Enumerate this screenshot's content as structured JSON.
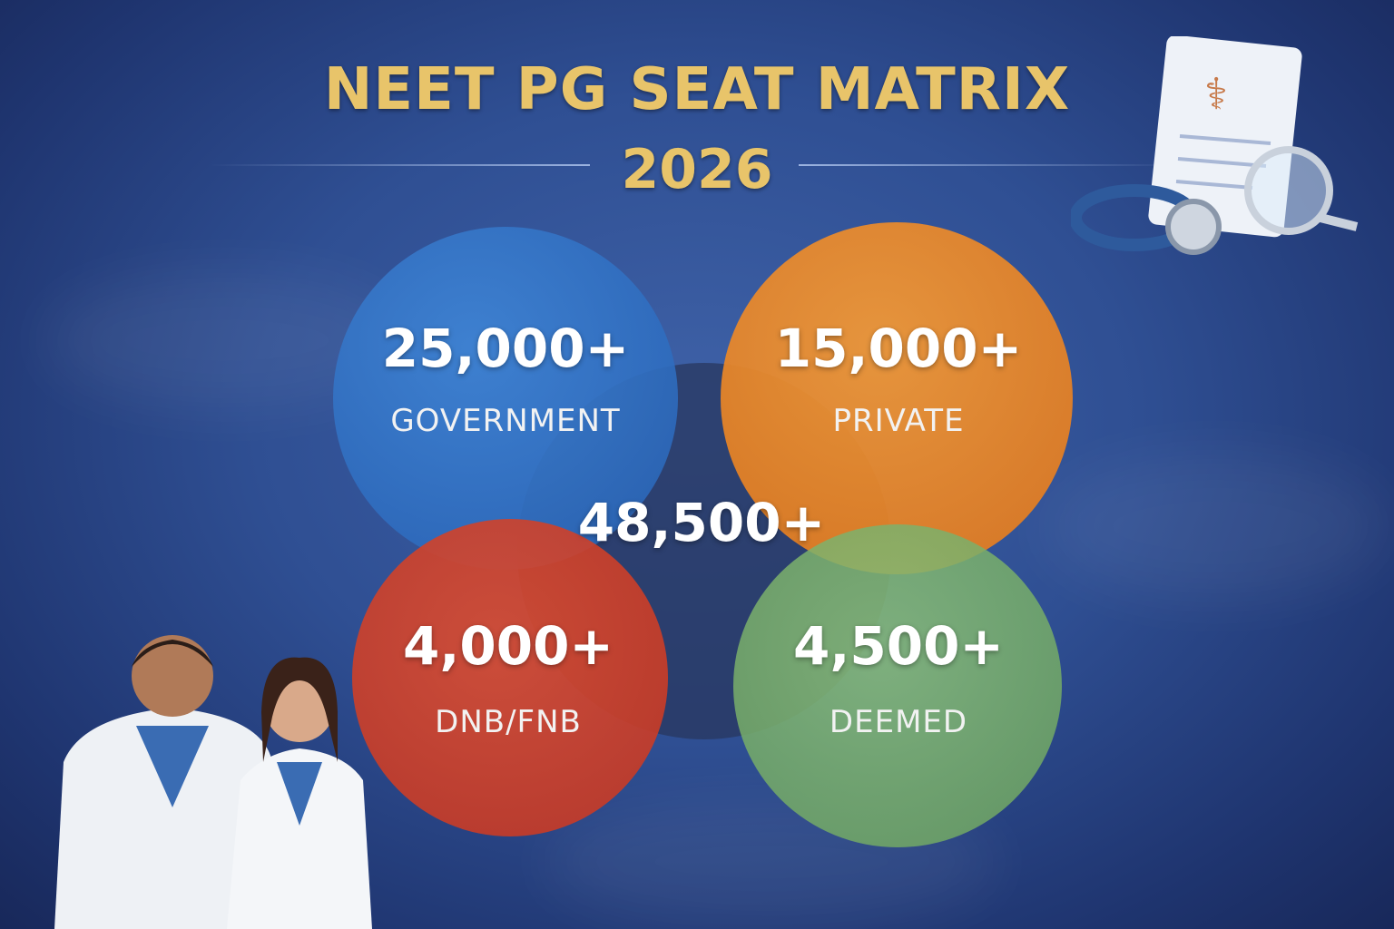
{
  "title": {
    "line1": "NEET PG SEAT MATRIX",
    "line2": "2026"
  },
  "colors": {
    "title": "#e8c46a",
    "government": "#2f6fc4",
    "private": "#ee8a25",
    "dnb_fnb": "#d4402a",
    "deemed": "#79b06a",
    "total": "#2c3e66"
  },
  "segments": [
    {
      "value": "25,000+",
      "label": "GOVERNMENT"
    },
    {
      "value": "15,000+",
      "label": "PRIVATE"
    },
    {
      "value": "4,000+",
      "label": "DNB/FNB"
    },
    {
      "value": "4,500+",
      "label": "DEEMED"
    }
  ],
  "total": {
    "value": "48,500+"
  },
  "illustrations": [
    "stethoscope-document-magnifier-icon",
    "doctors-illustration"
  ]
}
